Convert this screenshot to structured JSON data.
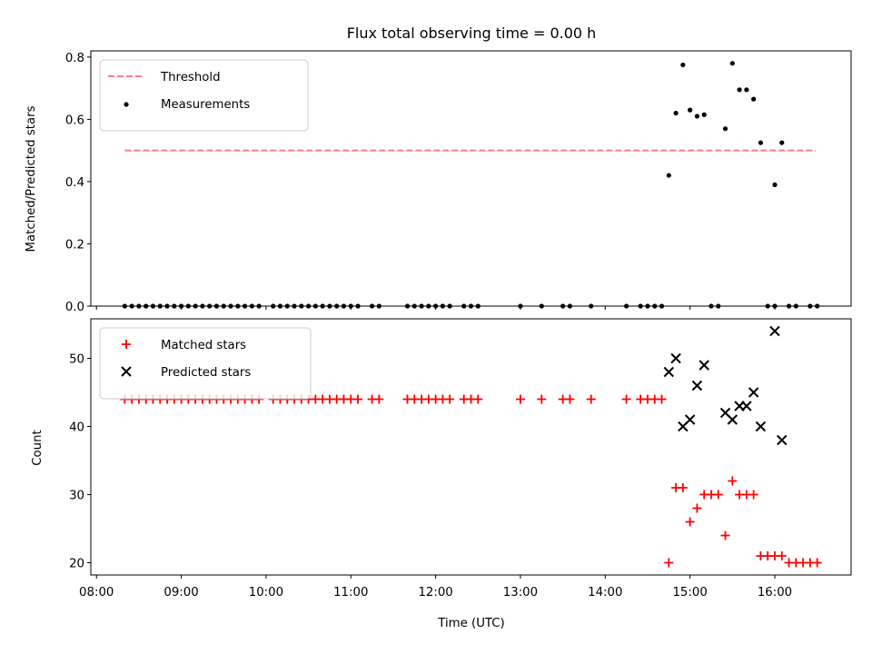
{
  "chart_data": [
    {
      "type": "scatter",
      "title": "Flux total observing time = 0.00 h",
      "ylabel": "Matched/Predicted stars",
      "xlim": [
        "07:56",
        "16:54"
      ],
      "ylim": [
        0,
        0.82
      ],
      "yticks": [
        "0.0",
        "0.2",
        "0.4",
        "0.6",
        "0.8"
      ],
      "legend_position": "upper-left",
      "threshold": {
        "name": "Threshold",
        "y": 0.5,
        "x_start": "08:20",
        "x_end": "16:29",
        "color": "#ff7f7f",
        "style": "dashed"
      },
      "series": [
        {
          "name": "Measurements",
          "color": "#000000",
          "marker": "dot",
          "points": [
            [
              "08:20",
              0
            ],
            [
              "08:25",
              0
            ],
            [
              "08:30",
              0
            ],
            [
              "08:35",
              0
            ],
            [
              "08:40",
              0
            ],
            [
              "08:45",
              0
            ],
            [
              "08:50",
              0
            ],
            [
              "08:55",
              0
            ],
            [
              "09:00",
              0
            ],
            [
              "09:05",
              0
            ],
            [
              "09:10",
              0
            ],
            [
              "09:15",
              0
            ],
            [
              "09:20",
              0
            ],
            [
              "09:25",
              0
            ],
            [
              "09:30",
              0
            ],
            [
              "09:35",
              0
            ],
            [
              "09:40",
              0
            ],
            [
              "09:45",
              0
            ],
            [
              "09:50",
              0
            ],
            [
              "09:55",
              0
            ],
            [
              "10:05",
              0
            ],
            [
              "10:10",
              0
            ],
            [
              "10:15",
              0
            ],
            [
              "10:20",
              0
            ],
            [
              "10:25",
              0
            ],
            [
              "10:30",
              0
            ],
            [
              "10:35",
              0
            ],
            [
              "10:40",
              0
            ],
            [
              "10:45",
              0
            ],
            [
              "10:50",
              0
            ],
            [
              "10:55",
              0
            ],
            [
              "11:00",
              0
            ],
            [
              "11:05",
              0
            ],
            [
              "11:15",
              0
            ],
            [
              "11:20",
              0
            ],
            [
              "11:40",
              0
            ],
            [
              "11:45",
              0
            ],
            [
              "11:50",
              0
            ],
            [
              "11:55",
              0
            ],
            [
              "12:00",
              0
            ],
            [
              "12:05",
              0
            ],
            [
              "12:10",
              0
            ],
            [
              "12:20",
              0
            ],
            [
              "12:25",
              0
            ],
            [
              "12:30",
              0
            ],
            [
              "13:00",
              0
            ],
            [
              "13:15",
              0
            ],
            [
              "13:30",
              0
            ],
            [
              "13:35",
              0
            ],
            [
              "13:50",
              0
            ],
            [
              "14:15",
              0
            ],
            [
              "14:25",
              0
            ],
            [
              "14:30",
              0
            ],
            [
              "14:35",
              0
            ],
            [
              "14:40",
              0
            ],
            [
              "14:45",
              0.42
            ],
            [
              "14:50",
              0.62
            ],
            [
              "14:55",
              0.775
            ],
            [
              "15:00",
              0.63
            ],
            [
              "15:05",
              0.61
            ],
            [
              "15:10",
              0.615
            ],
            [
              "15:15",
              0
            ],
            [
              "15:20",
              0
            ],
            [
              "15:25",
              0.57
            ],
            [
              "15:30",
              0.78
            ],
            [
              "15:35",
              0.695
            ],
            [
              "15:40",
              0.695
            ],
            [
              "15:45",
              0.665
            ],
            [
              "15:50",
              0.525
            ],
            [
              "15:55",
              0
            ],
            [
              "16:00",
              0
            ],
            [
              "16:00",
              0.39
            ],
            [
              "16:05",
              0.525
            ],
            [
              "16:10",
              0
            ],
            [
              "16:15",
              0
            ],
            [
              "16:25",
              0
            ],
            [
              "16:30",
              0
            ]
          ]
        }
      ]
    },
    {
      "type": "scatter",
      "xlabel": "Time (UTC)",
      "ylabel": "Count",
      "xlim": [
        "07:56",
        "16:54"
      ],
      "ylim": [
        18.2,
        55.8
      ],
      "xticks": [
        "08:00",
        "09:00",
        "10:00",
        "11:00",
        "12:00",
        "13:00",
        "14:00",
        "15:00",
        "16:00"
      ],
      "yticks": [
        "20",
        "30",
        "40",
        "50"
      ],
      "legend_position": "upper-left",
      "series": [
        {
          "name": "Matched stars",
          "color": "#ff0000",
          "marker": "plus",
          "points": [
            [
              "08:20",
              44
            ],
            [
              "08:25",
              44
            ],
            [
              "08:30",
              44
            ],
            [
              "08:35",
              44
            ],
            [
              "08:40",
              44
            ],
            [
              "08:45",
              44
            ],
            [
              "08:50",
              44
            ],
            [
              "08:55",
              44
            ],
            [
              "09:00",
              44
            ],
            [
              "09:05",
              44
            ],
            [
              "09:10",
              44
            ],
            [
              "09:15",
              44
            ],
            [
              "09:20",
              44
            ],
            [
              "09:25",
              44
            ],
            [
              "09:30",
              44
            ],
            [
              "09:35",
              44
            ],
            [
              "09:40",
              44
            ],
            [
              "09:45",
              44
            ],
            [
              "09:50",
              44
            ],
            [
              "09:55",
              44
            ],
            [
              "10:05",
              44
            ],
            [
              "10:10",
              44
            ],
            [
              "10:15",
              44
            ],
            [
              "10:20",
              44
            ],
            [
              "10:25",
              44
            ],
            [
              "10:30",
              44
            ],
            [
              "10:35",
              44
            ],
            [
              "10:40",
              44
            ],
            [
              "10:45",
              44
            ],
            [
              "10:50",
              44
            ],
            [
              "10:55",
              44
            ],
            [
              "11:00",
              44
            ],
            [
              "11:05",
              44
            ],
            [
              "11:15",
              44
            ],
            [
              "11:20",
              44
            ],
            [
              "11:40",
              44
            ],
            [
              "11:45",
              44
            ],
            [
              "11:50",
              44
            ],
            [
              "11:55",
              44
            ],
            [
              "12:00",
              44
            ],
            [
              "12:05",
              44
            ],
            [
              "12:10",
              44
            ],
            [
              "12:20",
              44
            ],
            [
              "12:25",
              44
            ],
            [
              "12:30",
              44
            ],
            [
              "13:00",
              44
            ],
            [
              "13:15",
              44
            ],
            [
              "13:30",
              44
            ],
            [
              "13:35",
              44
            ],
            [
              "13:50",
              44
            ],
            [
              "14:15",
              44
            ],
            [
              "14:25",
              44
            ],
            [
              "14:30",
              44
            ],
            [
              "14:35",
              44
            ],
            [
              "14:40",
              44
            ],
            [
              "14:45",
              20
            ],
            [
              "14:50",
              31
            ],
            [
              "14:55",
              31
            ],
            [
              "15:00",
              26
            ],
            [
              "15:05",
              28
            ],
            [
              "15:10",
              30
            ],
            [
              "15:15",
              30
            ],
            [
              "15:20",
              30
            ],
            [
              "15:25",
              24
            ],
            [
              "15:30",
              32
            ],
            [
              "15:35",
              30
            ],
            [
              "15:40",
              30
            ],
            [
              "15:45",
              30
            ],
            [
              "15:50",
              21
            ],
            [
              "15:55",
              21
            ],
            [
              "16:00",
              21
            ],
            [
              "16:05",
              21
            ],
            [
              "16:10",
              20
            ],
            [
              "16:15",
              20
            ],
            [
              "16:20",
              20
            ],
            [
              "16:25",
              20
            ],
            [
              "16:30",
              20
            ]
          ]
        },
        {
          "name": "Predicted stars",
          "color": "#000000",
          "marker": "x",
          "points": [
            [
              "14:45",
              48
            ],
            [
              "14:50",
              50
            ],
            [
              "14:55",
              40
            ],
            [
              "15:00",
              41
            ],
            [
              "15:05",
              46
            ],
            [
              "15:10",
              49
            ],
            [
              "15:25",
              42
            ],
            [
              "15:30",
              41
            ],
            [
              "15:35",
              43
            ],
            [
              "15:40",
              43
            ],
            [
              "15:45",
              45
            ],
            [
              "15:50",
              40
            ],
            [
              "16:00",
              54
            ],
            [
              "16:05",
              38
            ]
          ]
        }
      ]
    }
  ]
}
